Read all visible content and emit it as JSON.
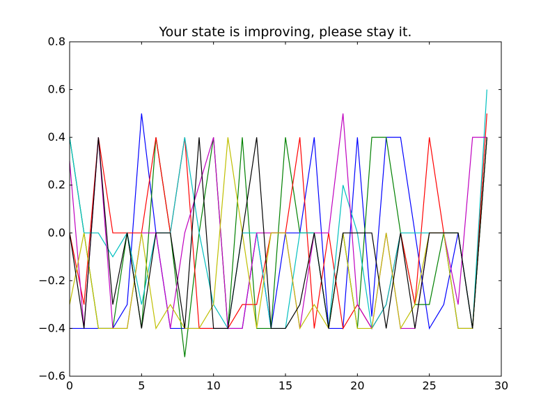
{
  "chart_data": {
    "type": "line",
    "title": "Your state is improving, please stay it.",
    "xlabel": "",
    "ylabel": "",
    "xlim": [
      0,
      30
    ],
    "ylim": [
      -0.6,
      0.8
    ],
    "xticks": [
      0,
      5,
      10,
      15,
      20,
      25,
      30
    ],
    "yticks": [
      -0.6,
      -0.4,
      -0.2,
      0.0,
      0.2,
      0.4,
      0.6,
      0.8
    ],
    "xtick_labels": [
      "0",
      "5",
      "10",
      "15",
      "20",
      "25",
      "30"
    ],
    "ytick_labels": [
      "−0.6",
      "−0.4",
      "−0.2",
      "0.0",
      "0.2",
      "0.4",
      "0.6",
      "0.8"
    ],
    "grid": false,
    "legend": "none",
    "x": [
      0,
      1,
      2,
      3,
      4,
      5,
      6,
      7,
      8,
      9,
      10,
      11,
      12,
      13,
      14,
      15,
      16,
      17,
      18,
      19,
      20,
      21,
      22,
      23,
      24,
      25,
      26,
      27,
      28,
      29
    ],
    "series": [
      {
        "color": "#0000ff",
        "values": [
          -0.4,
          -0.4,
          -0.4,
          -0.4,
          -0.3,
          0.5,
          0.0,
          -0.4,
          -0.4,
          -0.4,
          -0.4,
          -0.4,
          -0.4,
          0.0,
          -0.4,
          0.0,
          0.0,
          0.4,
          -0.4,
          -0.4,
          0.4,
          -0.35,
          0.4,
          0.4,
          0.0,
          -0.4,
          -0.3,
          0.0,
          -0.4,
          0.4
        ]
      },
      {
        "color": "#008000",
        "values": [
          0.4,
          0.0,
          -0.4,
          -0.4,
          0.0,
          -0.4,
          0.4,
          0.0,
          -0.52,
          0.0,
          0.4,
          -0.4,
          0.4,
          -0.4,
          -0.4,
          0.4,
          0.0,
          0.0,
          -0.4,
          0.0,
          -0.4,
          0.4,
          0.4,
          0.0,
          -0.3,
          -0.3,
          0.0,
          0.0,
          -0.4,
          0.4
        ]
      },
      {
        "color": "#ff0000",
        "values": [
          0.0,
          -0.3,
          0.4,
          0.0,
          0.0,
          0.0,
          0.4,
          0.0,
          0.4,
          -0.4,
          -0.4,
          -0.4,
          -0.3,
          -0.3,
          0.0,
          0.0,
          0.4,
          -0.4,
          0.0,
          -0.4,
          -0.3,
          -0.4,
          -0.3,
          0.0,
          -0.3,
          0.4,
          0.0,
          -0.4,
          -0.4,
          0.5
        ]
      },
      {
        "color": "#00bfbf",
        "values": [
          0.4,
          0.0,
          0.0,
          -0.1,
          0.0,
          -0.3,
          0.0,
          0.0,
          0.4,
          0.0,
          -0.3,
          -0.4,
          0.0,
          0.0,
          -0.4,
          -0.4,
          0.0,
          0.0,
          -0.4,
          0.2,
          0.0,
          -0.4,
          -0.3,
          0.0,
          0.0,
          0.0,
          0.0,
          -0.4,
          -0.4,
          0.6
        ]
      },
      {
        "color": "#bf00bf",
        "values": [
          0.3,
          -0.4,
          0.4,
          -0.4,
          -0.4,
          0.0,
          0.0,
          -0.4,
          0.0,
          0.2,
          0.4,
          -0.4,
          -0.4,
          0.0,
          0.0,
          0.0,
          -0.4,
          0.0,
          0.0,
          0.5,
          -0.3,
          -0.4,
          0.0,
          -0.4,
          -0.4,
          0.0,
          0.0,
          -0.3,
          0.4,
          0.4
        ]
      },
      {
        "color": "#bfbf00",
        "values": [
          -0.3,
          0.0,
          -0.4,
          -0.4,
          -0.4,
          0.0,
          -0.4,
          -0.3,
          -0.4,
          -0.4,
          -0.3,
          0.4,
          0.0,
          -0.4,
          0.0,
          0.0,
          -0.4,
          -0.3,
          -0.4,
          0.0,
          -0.4,
          -0.4,
          0.0,
          -0.4,
          -0.3,
          0.0,
          0.0,
          -0.4,
          -0.4,
          0.4
        ]
      },
      {
        "color": "#000000",
        "values": [
          0.0,
          -0.4,
          0.4,
          -0.3,
          0.0,
          -0.4,
          0.0,
          0.0,
          -0.4,
          0.4,
          -0.4,
          -0.4,
          0.0,
          0.4,
          -0.4,
          -0.4,
          -0.3,
          0.0,
          -0.4,
          0.0,
          0.0,
          0.0,
          -0.4,
          0.0,
          -0.4,
          0.0,
          0.0,
          0.0,
          -0.4,
          0.4
        ]
      }
    ]
  }
}
